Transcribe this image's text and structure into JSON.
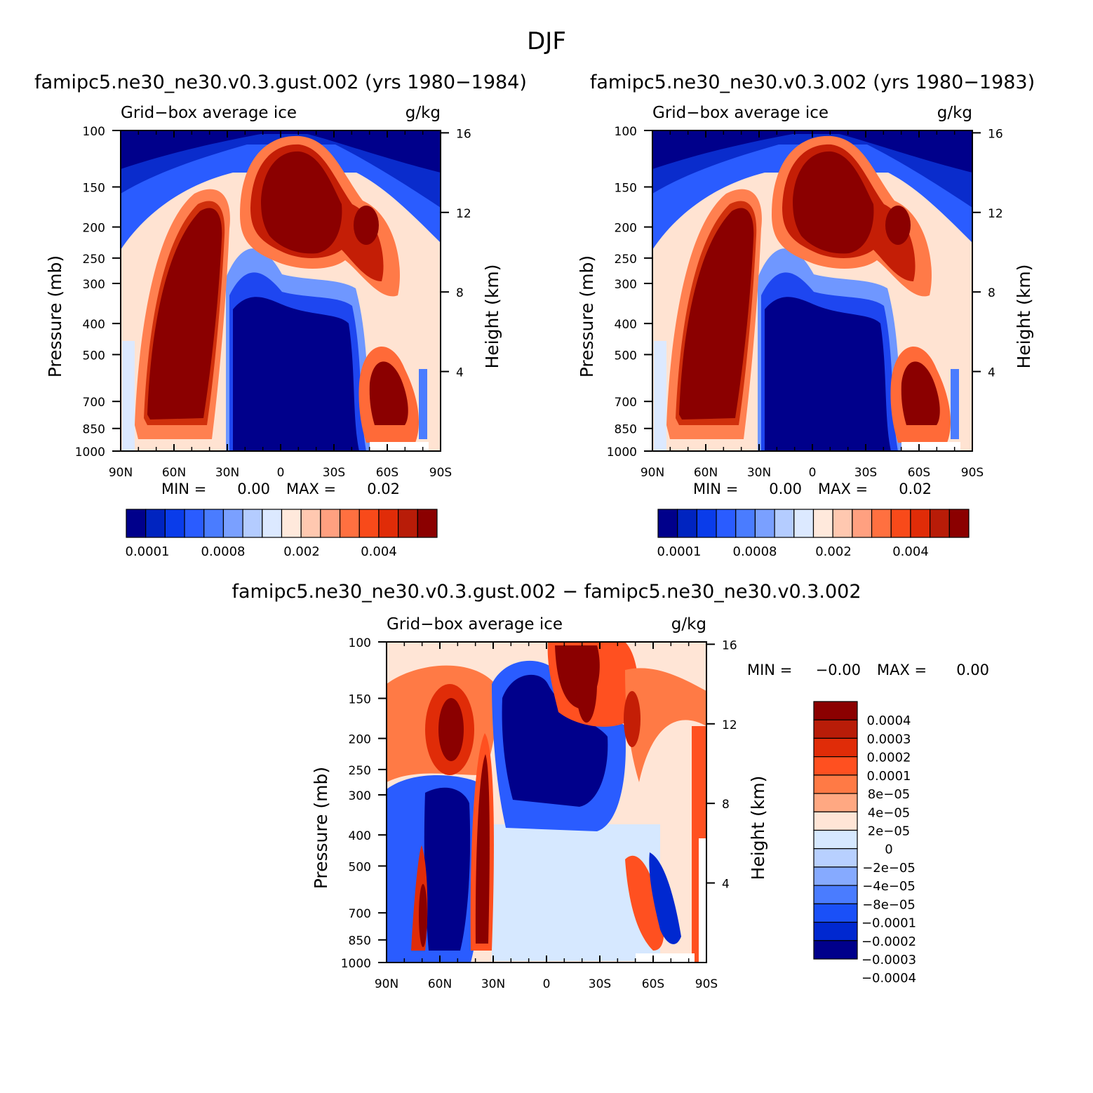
{
  "figure_title": "DJF",
  "chart_data": [
    {
      "type": "contour",
      "id": "panel-a",
      "run_title": "famipc5.ne30_ne30.v0.3.gust.002 (yrs 1980−1984)",
      "left_title": "Grid−box average ice",
      "right_title": "g/kg",
      "ylabel": "Pressure (mb)",
      "y2label": "Height (km)",
      "x_ticks": [
        "90N",
        "60N",
        "30N",
        "0",
        "30S",
        "60S",
        "90S"
      ],
      "x_values": [
        90,
        60,
        30,
        0,
        -30,
        -60,
        -90
      ],
      "y_ticks": [
        "100",
        "150",
        "200",
        "250",
        "300",
        "400",
        "500",
        "700",
        "850",
        "1000"
      ],
      "y_values": [
        100,
        150,
        200,
        250,
        300,
        400,
        500,
        700,
        850,
        1000
      ],
      "y2_ticks": [
        "16",
        "12",
        "8",
        "4"
      ],
      "y2_values": [
        16,
        12,
        8,
        4
      ],
      "stats": {
        "min_label": "MIN =",
        "min_value": "0.00",
        "max_label": "MAX =",
        "max_value": "0.02"
      },
      "colorbar": {
        "colors": [
          "#00008b",
          "#0024c0",
          "#0a3cea",
          "#2a5cff",
          "#4a7cff",
          "#7aa0ff",
          "#b4ccff",
          "#dce9ff",
          "#ffe9dc",
          "#ffc8b0",
          "#ffa080",
          "#ff7040",
          "#f84a1a",
          "#e02c08",
          "#b81c08",
          "#8b0000"
        ],
        "labels": [
          "0.0001",
          "0.0008",
          "0.002",
          "0.004"
        ]
      }
    },
    {
      "type": "contour",
      "id": "panel-b",
      "run_title": "famipc5.ne30_ne30.v0.3.002 (yrs 1980−1983)",
      "left_title": "Grid−box average ice",
      "right_title": "g/kg",
      "ylabel": "Pressure (mb)",
      "y2label": "Height (km)",
      "x_ticks": [
        "90N",
        "60N",
        "30N",
        "0",
        "30S",
        "60S",
        "90S"
      ],
      "x_values": [
        90,
        60,
        30,
        0,
        -30,
        -60,
        -90
      ],
      "y_ticks": [
        "100",
        "150",
        "200",
        "250",
        "300",
        "400",
        "500",
        "700",
        "850",
        "1000"
      ],
      "y_values": [
        100,
        150,
        200,
        250,
        300,
        400,
        500,
        700,
        850,
        1000
      ],
      "y2_ticks": [
        "16",
        "12",
        "8",
        "4"
      ],
      "y2_values": [
        16,
        12,
        8,
        4
      ],
      "stats": {
        "min_label": "MIN =",
        "min_value": "0.00",
        "max_label": "MAX =",
        "max_value": "0.02"
      },
      "colorbar": {
        "colors": [
          "#00008b",
          "#0024c0",
          "#0a3cea",
          "#2a5cff",
          "#4a7cff",
          "#7aa0ff",
          "#b4ccff",
          "#dce9ff",
          "#ffe9dc",
          "#ffc8b0",
          "#ffa080",
          "#ff7040",
          "#f84a1a",
          "#e02c08",
          "#b81c08",
          "#8b0000"
        ],
        "labels": [
          "0.0001",
          "0.0008",
          "0.002",
          "0.004"
        ]
      }
    },
    {
      "type": "contour",
      "id": "panel-diff",
      "run_title": "famipc5.ne30_ne30.v0.3.gust.002 − famipc5.ne30_ne30.v0.3.002",
      "left_title": "Grid−box average ice",
      "right_title": "g/kg",
      "ylabel": "Pressure (mb)",
      "y2label": "Height (km)",
      "x_ticks": [
        "90N",
        "60N",
        "30N",
        "0",
        "30S",
        "60S",
        "90S"
      ],
      "x_values": [
        90,
        60,
        30,
        0,
        -30,
        -60,
        -90
      ],
      "y_ticks": [
        "100",
        "150",
        "200",
        "250",
        "300",
        "400",
        "500",
        "700",
        "850",
        "1000"
      ],
      "y_values": [
        100,
        150,
        200,
        250,
        300,
        400,
        500,
        700,
        850,
        1000
      ],
      "y2_ticks": [
        "16",
        "12",
        "8",
        "4"
      ],
      "y2_values": [
        16,
        12,
        8,
        4
      ],
      "stats": {
        "min_label": "MIN =",
        "min_value": "−0.00",
        "max_label": "MAX =",
        "max_value": "0.00"
      },
      "colorbar": {
        "colors": [
          "#8b0000",
          "#b81c08",
          "#e02c08",
          "#ff5020",
          "#ff7a45",
          "#ffa882",
          "#ffe5d6",
          "#d6e8ff",
          "#b8d0ff",
          "#86aaff",
          "#4a7cff",
          "#1a50f8",
          "#0028d0",
          "#00008b"
        ],
        "labels": [
          "0.0004",
          "0.0003",
          "0.0002",
          "0.0001",
          "8e−05",
          "4e−05",
          "2e−05",
          "0",
          "−2e−05",
          "−4e−05",
          "−8e−05",
          "−0.0001",
          "−0.0002",
          "−0.0003",
          "−0.0004"
        ]
      }
    }
  ]
}
